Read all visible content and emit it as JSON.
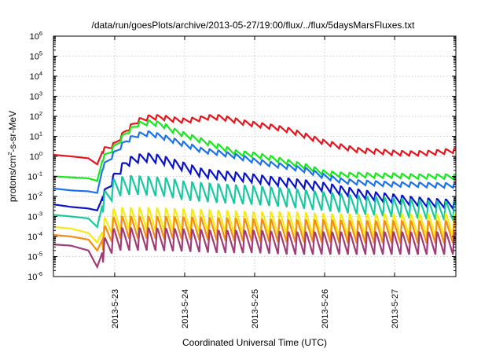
{
  "chart_data": {
    "type": "line",
    "title": "/data/run/goesPlots/archive/2013-05-27/19:00/flux/../flux/5daysMarsFluxes.txt",
    "xlabel": "Coordinated Universal Time (UTC)",
    "ylabel_base": "protons/cm",
    "ylabel_sup": "2",
    "ylabel_rest": "-s-sr-MeV",
    "y_scale": "log",
    "ylim": [
      1e-06,
      1000000.0
    ],
    "xlim": [
      "2013-05-22 03:00",
      "2013-05-27 21:00"
    ],
    "grid": true,
    "legend": "none",
    "y_ticks": [
      {
        "base": "10",
        "exp": "-6",
        "value": 1e-06
      },
      {
        "base": "10",
        "exp": "-5",
        "value": 1e-05
      },
      {
        "base": "10",
        "exp": "-4",
        "value": 0.0001
      },
      {
        "base": "10",
        "exp": "-3",
        "value": 0.001
      },
      {
        "base": "10",
        "exp": "-2",
        "value": 0.01
      },
      {
        "base": "10",
        "exp": "-1",
        "value": 0.1
      },
      {
        "base": "10",
        "exp": "0",
        "value": 1
      },
      {
        "base": "10",
        "exp": "1",
        "value": 10
      },
      {
        "base": "10",
        "exp": "2",
        "value": 100
      },
      {
        "base": "10",
        "exp": "3",
        "value": 1000
      },
      {
        "base": "10",
        "exp": "4",
        "value": 10000
      },
      {
        "base": "10",
        "exp": "5",
        "value": 100000
      },
      {
        "base": "10",
        "exp": "6",
        "value": 1000000
      }
    ],
    "x_ticks": [
      {
        "label": "2013-5-23",
        "value": "2013-05-23 00:00"
      },
      {
        "label": "2013-5-24",
        "value": "2013-05-24 00:00"
      },
      {
        "label": "2013-5-25",
        "value": "2013-05-25 00:00"
      },
      {
        "label": "2013-5-26",
        "value": "2013-05-26 00:00"
      },
      {
        "label": "2013-5-27",
        "value": "2013-05-27 00:00"
      }
    ],
    "series": [
      {
        "color": "#e8141c",
        "x": [
          "2013-05-22 03:00",
          "2013-05-22 09:00",
          "2013-05-22 15:00",
          "2013-05-22 18:00",
          "2013-05-22 20:00",
          "2013-05-23 00:00",
          "2013-05-23 04:00",
          "2013-05-23 08:00",
          "2013-05-23 12:00",
          "2013-05-23 16:00",
          "2013-05-23 20:00",
          "2013-05-24 00:00",
          "2013-05-24 04:00",
          "2013-05-24 08:00",
          "2013-05-24 12:00",
          "2013-05-24 16:00",
          "2013-05-24 20:00",
          "2013-05-25 00:00",
          "2013-05-25 06:00",
          "2013-05-25 12:00",
          "2013-05-25 18:00",
          "2013-05-26 00:00",
          "2013-05-26 06:00",
          "2013-05-26 12:00",
          "2013-05-26 18:00",
          "2013-05-27 00:00",
          "2013-05-27 06:00",
          "2013-05-27 12:00",
          "2013-05-27 18:00",
          "2013-05-27 21:00"
        ],
        "values": [
          1.2,
          1.0,
          0.8,
          0.4,
          2.0,
          4.0,
          20,
          60,
          90,
          90,
          70,
          60,
          70,
          90,
          90,
          70,
          50,
          40,
          30,
          20,
          10,
          5,
          3,
          2,
          1.8,
          1.5,
          1.4,
          1.5,
          1.8,
          2.0
        ],
        "ripple": 0.25,
        "period_h": 3
      },
      {
        "color": "#16e81c",
        "x": [
          "2013-05-22 03:00",
          "2013-05-22 09:00",
          "2013-05-22 15:00",
          "2013-05-22 18:00",
          "2013-05-22 20:00",
          "2013-05-23 00:00",
          "2013-05-23 04:00",
          "2013-05-23 08:00",
          "2013-05-23 12:00",
          "2013-05-23 16:00",
          "2013-05-23 20:00",
          "2013-05-24 00:00",
          "2013-05-24 06:00",
          "2013-05-24 12:00",
          "2013-05-24 18:00",
          "2013-05-25 00:00",
          "2013-05-25 06:00",
          "2013-05-25 12:00",
          "2013-05-25 18:00",
          "2013-05-26 00:00",
          "2013-05-26 06:00",
          "2013-05-26 12:00",
          "2013-05-26 18:00",
          "2013-05-27 00:00",
          "2013-05-27 06:00",
          "2013-05-27 12:00",
          "2013-05-27 18:00",
          "2013-05-27 21:00"
        ],
        "values": [
          0.1,
          0.09,
          0.08,
          0.06,
          0.8,
          3,
          15,
          40,
          50,
          40,
          20,
          12,
          6,
          3,
          1.5,
          1.2,
          0.8,
          0.5,
          0.3,
          0.15,
          0.12,
          0.12,
          0.11,
          0.11,
          0.1,
          0.1,
          0.1,
          0.1
        ],
        "ripple": 0.25,
        "period_h": 3
      },
      {
        "color": "#1c72e8",
        "x": [
          "2013-05-22 03:00",
          "2013-05-22 09:00",
          "2013-05-22 15:00",
          "2013-05-22 18:00",
          "2013-05-22 20:00",
          "2013-05-23 00:00",
          "2013-05-23 04:00",
          "2013-05-23 08:00",
          "2013-05-23 12:00",
          "2013-05-23 16:00",
          "2013-05-24 00:00",
          "2013-05-24 06:00",
          "2013-05-24 12:00",
          "2013-05-24 18:00",
          "2013-05-25 00:00",
          "2013-05-25 06:00",
          "2013-05-25 12:00",
          "2013-05-25 18:00",
          "2013-05-26 00:00",
          "2013-05-26 06:00",
          "2013-05-26 12:00",
          "2013-05-26 18:00",
          "2013-05-27 00:00",
          "2013-05-27 06:00",
          "2013-05-27 12:00",
          "2013-05-27 18:00",
          "2013-05-27 21:00"
        ],
        "values": [
          0.025,
          0.02,
          0.018,
          0.015,
          0.3,
          1.5,
          6,
          12,
          14,
          10,
          4,
          2,
          1.5,
          1,
          0.6,
          0.4,
          0.3,
          0.2,
          0.1,
          0.06,
          0.05,
          0.045,
          0.04,
          0.04,
          0.037,
          0.036,
          0.036
        ],
        "ripple": 0.25,
        "period_h": 3
      },
      {
        "color": "#0a12c8",
        "x": [
          "2013-05-22 03:00",
          "2013-05-22 09:00",
          "2013-05-22 15:00",
          "2013-05-22 18:00",
          "2013-05-22 20:00",
          "2013-05-23 00:00",
          "2013-05-23 04:00",
          "2013-05-23 08:00",
          "2013-05-23 12:00",
          "2013-05-23 16:00",
          "2013-05-24 00:00",
          "2013-05-24 06:00",
          "2013-05-24 12:00",
          "2013-05-24 18:00",
          "2013-05-25 00:00",
          "2013-05-25 06:00",
          "2013-05-25 12:00",
          "2013-05-25 18:00",
          "2013-05-26 00:00",
          "2013-05-26 06:00",
          "2013-05-26 12:00",
          "2013-05-26 18:00",
          "2013-05-27 00:00",
          "2013-05-27 06:00",
          "2013-05-27 12:00",
          "2013-05-27 18:00",
          "2013-05-27 21:00"
        ],
        "values": [
          0.004,
          0.003,
          0.0025,
          0.002,
          0.01,
          0.1,
          0.5,
          0.8,
          0.9,
          0.7,
          0.3,
          0.15,
          0.12,
          0.1,
          0.08,
          0.06,
          0.05,
          0.04,
          0.03,
          0.02,
          0.014,
          0.01,
          0.008,
          0.006,
          0.005,
          0.0045,
          0.004
        ],
        "ripple": 0.45,
        "period_h": 3
      },
      {
        "color": "#1ac8a0",
        "x": [
          "2013-05-22 03:00",
          "2013-05-22 09:00",
          "2013-05-22 15:00",
          "2013-05-22 18:00",
          "2013-05-22 20:00",
          "2013-05-23 00:00",
          "2013-05-23 06:00",
          "2013-05-23 12:00",
          "2013-05-23 18:00",
          "2013-05-24 00:00",
          "2013-05-24 12:00",
          "2013-05-25 00:00",
          "2013-05-25 12:00",
          "2013-05-26 00:00",
          "2013-05-26 12:00",
          "2013-05-27 00:00",
          "2013-05-27 12:00",
          "2013-05-27 21:00"
        ],
        "values": [
          0.0012,
          0.001,
          0.0008,
          0.0003,
          0.005,
          0.03,
          0.04,
          0.035,
          0.03,
          0.02,
          0.015,
          0.012,
          0.009,
          0.006,
          0.004,
          0.003,
          0.0022,
          0.002
        ],
        "ripple": 1.0,
        "period_h": 3
      },
      {
        "color": "#f5ea14",
        "x": [
          "2013-05-22 03:00",
          "2013-05-22 09:00",
          "2013-05-22 15:00",
          "2013-05-22 18:00",
          "2013-05-22 20:00",
          "2013-05-23 00:00",
          "2013-05-23 12:00",
          "2013-05-24 00:00",
          "2013-05-24 12:00",
          "2013-05-25 00:00",
          "2013-05-25 12:00",
          "2013-05-26 00:00",
          "2013-05-26 12:00",
          "2013-05-27 00:00",
          "2013-05-27 12:00",
          "2013-05-27 21:00"
        ],
        "values": [
          0.0003,
          0.00025,
          0.00015,
          5e-05,
          0.0002,
          0.0008,
          0.0008,
          0.0007,
          0.0006,
          0.0005,
          0.0005,
          0.0004,
          0.0004,
          0.0004,
          0.0004,
          0.0004
        ],
        "ripple": 1.2,
        "period_h": 3
      },
      {
        "color": "#f58c14",
        "x": [
          "2013-05-22 03:00",
          "2013-05-22 09:00",
          "2013-05-22 15:00",
          "2013-05-22 18:00",
          "2013-05-22 20:00",
          "2013-05-23 00:00",
          "2013-05-23 12:00",
          "2013-05-24 00:00",
          "2013-05-24 12:00",
          "2013-05-25 00:00",
          "2013-05-25 12:00",
          "2013-05-26 00:00",
          "2013-05-26 12:00",
          "2013-05-27 00:00",
          "2013-05-27 12:00",
          "2013-05-27 21:00"
        ],
        "values": [
          0.00012,
          0.0001,
          7e-05,
          2e-05,
          8e-05,
          0.0003,
          0.0003,
          0.00028,
          0.00025,
          0.00022,
          0.0002,
          0.0002,
          0.00018,
          0.00018,
          0.00018,
          0.00018
        ],
        "ripple": 1.2,
        "period_h": 3
      },
      {
        "color": "#a03c78",
        "x": [
          "2013-05-22 03:00",
          "2013-05-22 09:00",
          "2013-05-22 15:00",
          "2013-05-22 18:00",
          "2013-05-22 20:00",
          "2013-05-23 00:00",
          "2013-05-23 12:00",
          "2013-05-24 00:00",
          "2013-05-24 12:00",
          "2013-05-25 00:00",
          "2013-05-25 12:00",
          "2013-05-26 00:00",
          "2013-05-26 12:00",
          "2013-05-27 00:00",
          "2013-05-27 12:00",
          "2013-05-27 21:00"
        ],
        "values": [
          4e-05,
          3.5e-05,
          2e-05,
          3e-06,
          2e-05,
          8e-05,
          8e-05,
          7e-05,
          6e-05,
          6e-05,
          5e-05,
          5e-05,
          5e-05,
          5e-05,
          5e-05,
          5e-05
        ],
        "ripple": 1.2,
        "period_h": 3
      }
    ]
  }
}
